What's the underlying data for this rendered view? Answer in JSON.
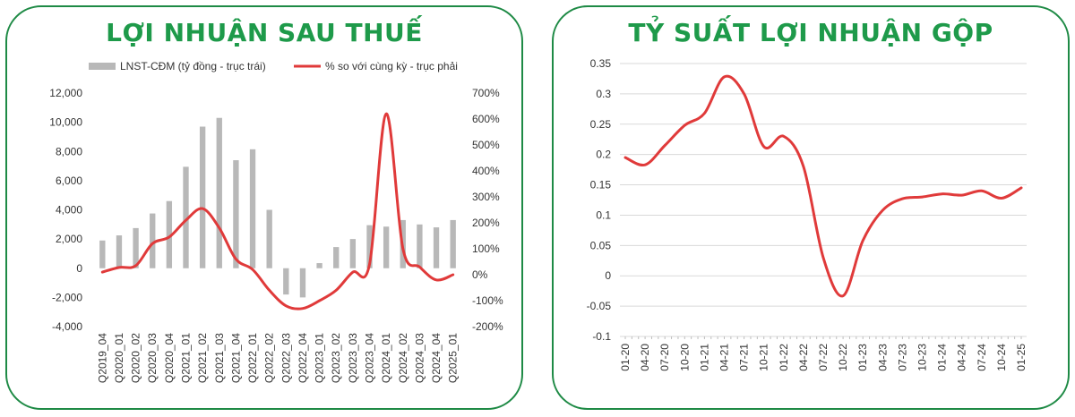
{
  "charts": [
    {
      "title": "LỢI NHUẬN SAU THUẾ",
      "type": "bar+line",
      "legend": [
        {
          "label": "LNST-CĐM (tỷ đồng - trục trái)",
          "color": "#b8b8b8",
          "kind": "bar"
        },
        {
          "label": "% so với cùng kỳ - trục phải",
          "color": "#e03a3a",
          "kind": "line"
        }
      ],
      "legend_position": "top",
      "categories": [
        "Q2019_04",
        "Q2020_01",
        "Q2020_02",
        "Q2020_03",
        "Q2020_04",
        "Q2021_01",
        "Q2021_02",
        "Q2021_03",
        "Q2021_04",
        "Q2022_01",
        "Q2022_02",
        "Q2022_03",
        "Q2022_04",
        "Q2023_01",
        "Q2023_02",
        "Q2023_03",
        "Q2023_04",
        "Q2024_01",
        "Q2024_02",
        "Q2024_03",
        "Q2024_04",
        "Q2025_01"
      ],
      "bar_values": [
        1900,
        2250,
        2750,
        3750,
        4600,
        6950,
        9700,
        10300,
        7400,
        8150,
        4000,
        -1800,
        -2000,
        350,
        1450,
        2000,
        2950,
        2850,
        3300,
        3000,
        2800,
        3300
      ],
      "line_values": [
        10,
        28,
        35,
        120,
        145,
        210,
        255,
        180,
        60,
        20,
        -60,
        -120,
        -130,
        -100,
        -60,
        10,
        40,
        620,
        100,
        30,
        -20,
        0
      ],
      "left_axis": {
        "min": -4000,
        "max": 12000,
        "ticks": [
          "-4,000",
          "-2,000",
          "0",
          "2,000",
          "4,000",
          "6,000",
          "8,000",
          "10,000",
          "12,000"
        ],
        "tick_values": [
          -4000,
          -2000,
          0,
          2000,
          4000,
          6000,
          8000,
          10000,
          12000
        ]
      },
      "right_axis": {
        "min": -200,
        "max": 700,
        "ticks": [
          "-200%",
          "-100%",
          "0%",
          "100%",
          "200%",
          "300%",
          "400%",
          "500%",
          "600%",
          "700%"
        ],
        "tick_values": [
          -200,
          -100,
          0,
          100,
          200,
          300,
          400,
          500,
          600,
          700
        ]
      },
      "grid": false,
      "colors": {
        "bar": "#b8b8b8",
        "line": "#e03a3a"
      }
    },
    {
      "title": "TỶ SUẤT LỢI NHUẬN GỘP",
      "type": "line",
      "x": [
        "01-20",
        "04-20",
        "07-20",
        "10-20",
        "01-21",
        "04-21",
        "07-21",
        "10-21",
        "01-22",
        "04-22",
        "07-22",
        "10-22",
        "01-23",
        "04-23",
        "07-23",
        "10-23",
        "01-24",
        "04-24",
        "07-24",
        "10-24",
        "01-25"
      ],
      "y": [
        0.195,
        0.183,
        0.215,
        0.248,
        0.268,
        0.328,
        0.3,
        0.213,
        0.23,
        0.18,
        0.03,
        -0.033,
        0.058,
        0.108,
        0.127,
        0.13,
        0.135,
        0.133,
        0.14,
        0.128,
        0.145
      ],
      "y_axis": {
        "min": -0.1,
        "max": 0.35,
        "ticks": [
          "-0.1",
          "-0.05",
          "0",
          "0.05",
          "0.1",
          "0.15",
          "0.2",
          "0.25",
          "0.3",
          "0.35"
        ],
        "tick_values": [
          -0.1,
          -0.05,
          0,
          0.05,
          0.1,
          0.15,
          0.2,
          0.25,
          0.3,
          0.35
        ]
      },
      "grid": true,
      "colors": {
        "line": "#e03a3a",
        "grid": "#d9d9d9"
      }
    }
  ]
}
